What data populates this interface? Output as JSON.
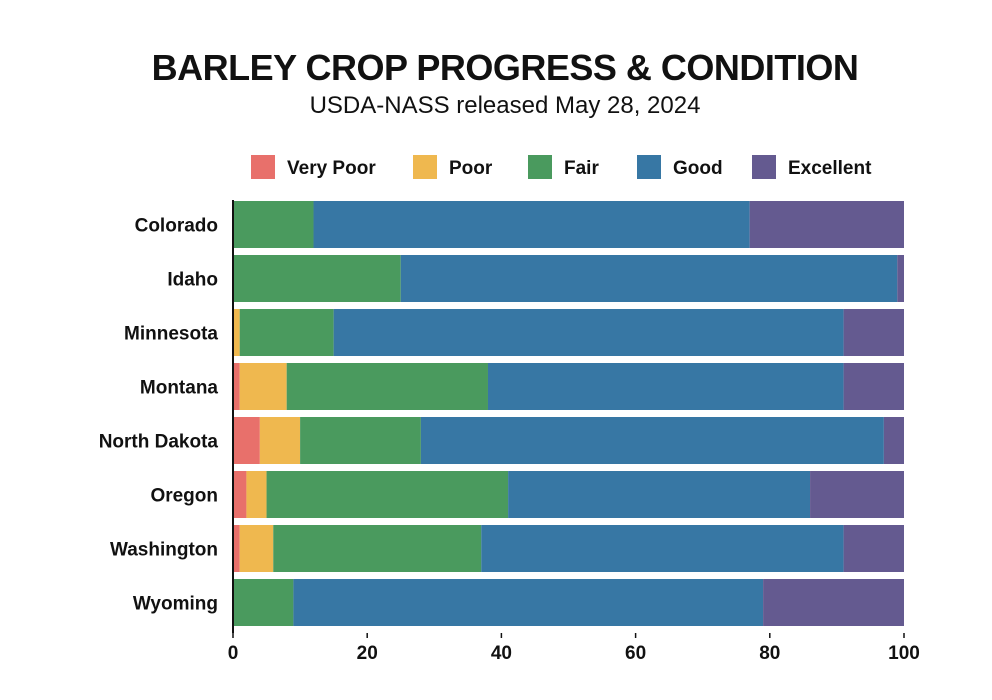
{
  "chart_data": {
    "type": "bar",
    "orientation": "horizontal",
    "stacked": true,
    "title": "BARLEY CROP PROGRESS & CONDITION",
    "subtitle": "USDA-NASS released May 28, 2024",
    "xlabel": "",
    "ylabel": "",
    "xlim": [
      0,
      100
    ],
    "xticks": [
      0,
      20,
      40,
      60,
      80,
      100
    ],
    "grid": false,
    "legend_position": "top",
    "categories": [
      "Colorado",
      "Idaho",
      "Minnesota",
      "Montana",
      "North Dakota",
      "Oregon",
      "Washington",
      "Wyoming"
    ],
    "series": [
      {
        "name": "Very Poor",
        "color": "#e8706b",
        "values": [
          0,
          0,
          0,
          1,
          4,
          2,
          1,
          0
        ]
      },
      {
        "name": "Poor",
        "color": "#efb84f",
        "values": [
          0,
          0,
          1,
          7,
          6,
          3,
          5,
          0
        ]
      },
      {
        "name": "Fair",
        "color": "#4a9a5e",
        "values": [
          12,
          25,
          14,
          30,
          18,
          36,
          31,
          9
        ]
      },
      {
        "name": "Good",
        "color": "#3777a4",
        "values": [
          65,
          74,
          76,
          53,
          69,
          45,
          54,
          70
        ]
      },
      {
        "name": "Excellent",
        "color": "#645a90",
        "values": [
          23,
          1,
          9,
          9,
          3,
          14,
          9,
          21
        ]
      }
    ]
  }
}
